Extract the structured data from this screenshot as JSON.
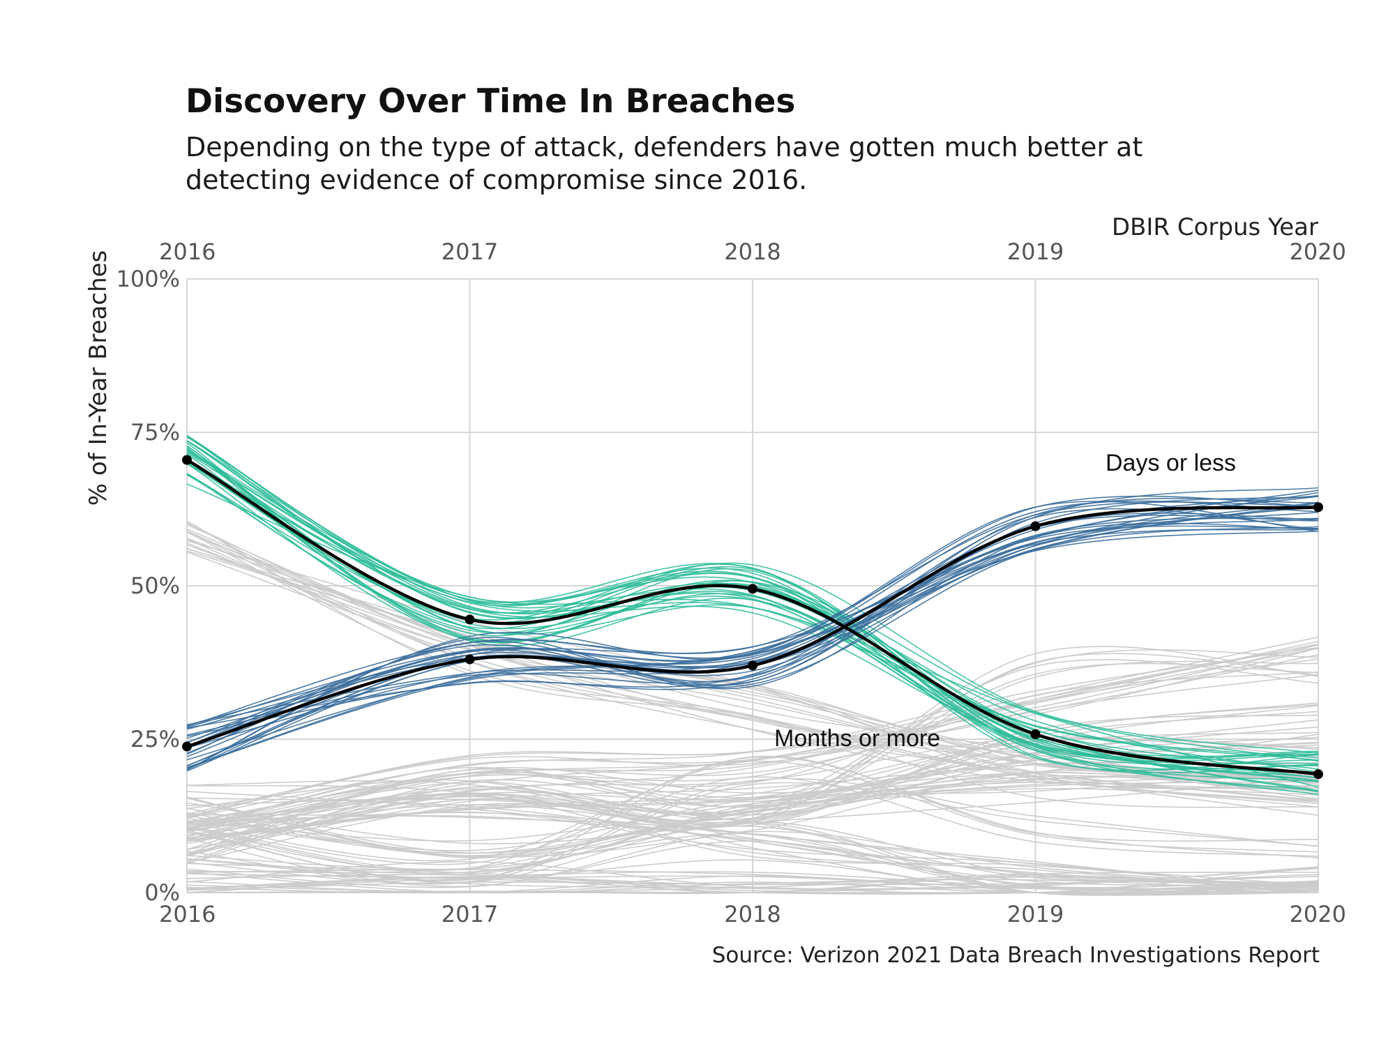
{
  "title": "Discovery Over Time In Breaches",
  "subtitle": "Depending on the type of attack, defenders have gotten much better at detecting evidence of compromise since 2016.",
  "source": "Source: Verizon 2021 Data Breach Investigations Report",
  "chart_data": {
    "type": "line",
    "x": [
      2016,
      2017,
      2018,
      2019,
      2020
    ],
    "x_tick_labels": [
      "2016",
      "2017",
      "2018",
      "2019",
      "2020"
    ],
    "top_xlabel": "DBIR Corpus Year",
    "ylabel": "% of In-Year Breaches",
    "ylim": [
      0,
      100
    ],
    "y_ticks": [
      0,
      25,
      50,
      75,
      100
    ],
    "y_tick_labels": [
      "0%",
      "25%",
      "50%",
      "75%",
      "100%"
    ],
    "grid": true,
    "colors": {
      "months_band": "#2ebd9a",
      "days_band": "#3b6e9c",
      "background_lines": "#cccccc",
      "median": "#000000",
      "grid": "#d6d6d6"
    },
    "series": [
      {
        "name": "Months or more",
        "values": [
          70.5,
          44.5,
          49.5,
          25.8,
          19.3
        ]
      },
      {
        "name": "Days or less",
        "values": [
          23.8,
          38.0,
          37.0,
          59.7,
          62.8
        ]
      }
    ]
  }
}
